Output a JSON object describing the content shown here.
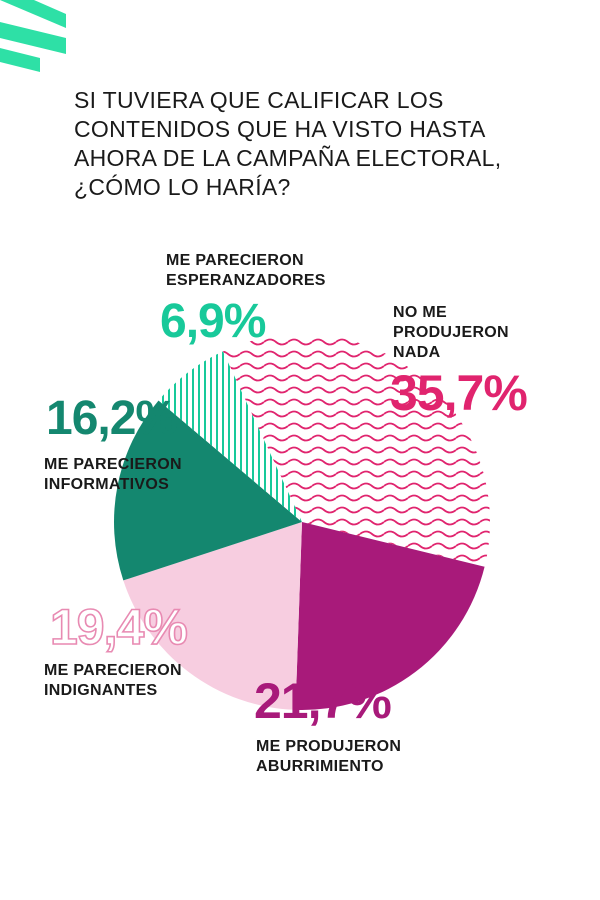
{
  "title_lines": [
    "SI TUVIERA QUE CALIFICAR LOS",
    "CONTENIDOS QUE HA VISTO HASTA",
    "AHORA DE LA CAMPAÑA ELECTORAL,",
    "¿CÓMO LO HARÍA?"
  ],
  "colors": {
    "brand_accent": "#2ee0a6",
    "no_me_produjeron_nada": "#e0246e",
    "me_produjeron_aburrimiento": "#a81a7a",
    "me_parecieron_indignantes": "#f7cde0",
    "me_parecieron_informativos": "#14876f",
    "me_parecieron_esperanzadores": "#18c99a"
  },
  "chart_data": {
    "type": "pie",
    "title": "SI TUVIERA QUE CALIFICAR LOS CONTENIDOS QUE HA VISTO HASTA AHORA DE LA CAMPAÑA ELECTORAL, ¿CÓMO LO HARÍA?",
    "slices": [
      {
        "label_lines": [
          "NO ME",
          "PRODUJERON",
          "NADA"
        ],
        "value": 35.7,
        "value_label": "35,7%",
        "color": "#e0246e",
        "fill_style": "wave-pattern"
      },
      {
        "label_lines": [
          "ME PRODUJERON",
          "ABURRIMIENTO"
        ],
        "value": 21.7,
        "value_label": "21,7%",
        "color": "#a81a7a",
        "fill_style": "solid"
      },
      {
        "label_lines": [
          "ME PARECIERON",
          "INDIGNANTES"
        ],
        "value": 19.4,
        "value_label": "19,4%",
        "color": "#f7cde0",
        "fill_style": "solid"
      },
      {
        "label_lines": [
          "ME PARECIERON",
          "INFORMATIVOS"
        ],
        "value": 16.2,
        "value_label": "16,2%",
        "color": "#14876f",
        "fill_style": "solid"
      },
      {
        "label_lines": [
          "ME PARECIERON",
          "ESPERANZADORES"
        ],
        "value": 6.9,
        "value_label": "6,9%",
        "color": "#18c99a",
        "fill_style": "vertical-stripes"
      }
    ]
  }
}
